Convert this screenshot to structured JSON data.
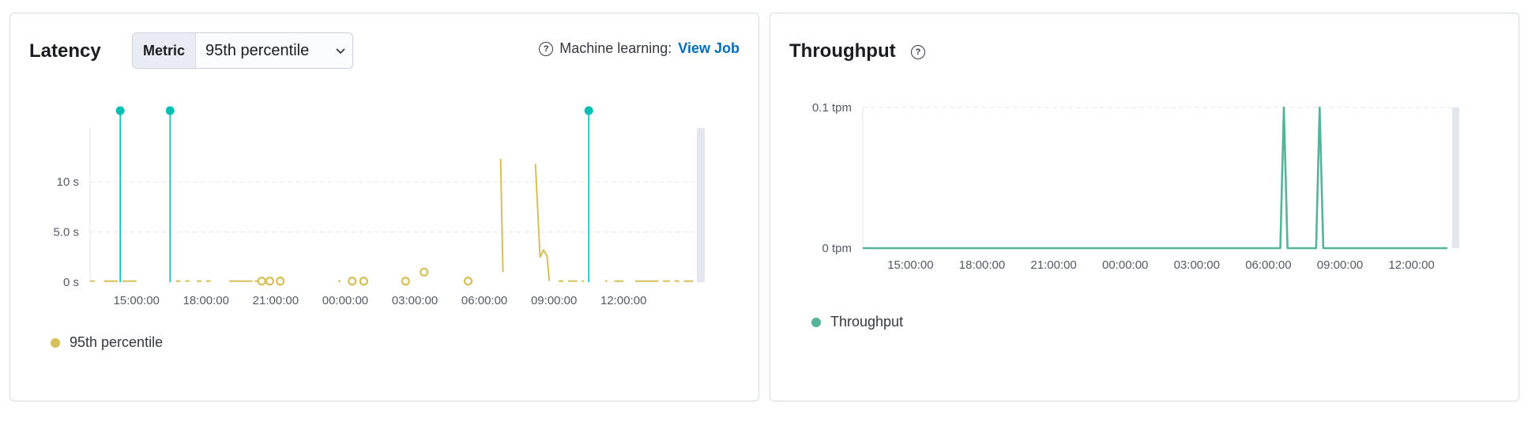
{
  "latency_panel": {
    "title": "Latency",
    "metric_select": {
      "prepend": "Metric",
      "value": "95th percentile"
    },
    "ml": {
      "label": "Machine learning:",
      "link": "View Job"
    },
    "legend": [
      {
        "name": "95th percentile",
        "color": "#d6bf57"
      }
    ]
  },
  "throughput_panel": {
    "title": "Throughput",
    "legend": [
      {
        "name": "Throughput",
        "color": "#54b399"
      }
    ]
  },
  "chart_data": [
    {
      "type": "line",
      "x_start": "13:00",
      "x_end": "15:30",
      "x_tick_labels": [
        "15:00:00",
        "18:00:00",
        "21:00:00",
        "00:00:00",
        "03:00:00",
        "06:00:00",
        "09:00:00",
        "12:00:00"
      ],
      "y_tick_labels": [
        "0 s",
        "5.0 s",
        "10 s"
      ],
      "ylim": [
        0,
        12.5
      ],
      "grid": true,
      "legend_position": "bottom-left",
      "series": [
        {
          "name": "95th percentile",
          "color": "#d6bf57",
          "line_segments": [
            [
              [
                13.0,
                0.1
              ],
              [
                13.2,
                0.1
              ]
            ],
            [
              [
                13.6,
                0.1
              ],
              [
                14.2,
                0.1
              ]
            ],
            [
              [
                14.4,
                0.1
              ],
              [
                15.0,
                0.1
              ]
            ],
            [
              [
                16.7,
                0.1
              ],
              [
                16.9,
                0.1
              ]
            ],
            [
              [
                17.1,
                0.1
              ],
              [
                17.3,
                0.1
              ]
            ],
            [
              [
                17.6,
                0.1
              ],
              [
                17.8,
                0.1
              ]
            ],
            [
              [
                18.0,
                0.1
              ],
              [
                18.2,
                0.1
              ]
            ],
            [
              [
                19.0,
                0.1
              ],
              [
                20.0,
                0.1
              ]
            ],
            [
              [
                20.1,
                0.1
              ],
              [
                20.3,
                0.1
              ]
            ],
            [
              [
                23.7,
                0.1
              ],
              [
                23.8,
                0.1
              ]
            ],
            [
              [
                24.7,
                0.1
              ],
              [
                24.8,
                0.1
              ]
            ],
            [
              [
                30.7,
                12.3
              ],
              [
                30.8,
                1.0
              ]
            ],
            [
              [
                32.2,
                11.8
              ],
              [
                32.4,
                2.5
              ],
              [
                32.55,
                3.2
              ],
              [
                32.7,
                2.6
              ],
              [
                32.8,
                0.1
              ]
            ],
            [
              [
                33.2,
                0.1
              ],
              [
                33.4,
                0.1
              ]
            ],
            [
              [
                33.6,
                0.1
              ],
              [
                34.0,
                0.1
              ]
            ],
            [
              [
                34.2,
                0.1
              ],
              [
                34.3,
                0.1
              ]
            ],
            [
              [
                35.2,
                0.1
              ],
              [
                35.3,
                0.1
              ]
            ],
            [
              [
                35.6,
                0.1
              ],
              [
                36.0,
                0.1
              ]
            ],
            [
              [
                36.5,
                0.1
              ],
              [
                37.5,
                0.1
              ]
            ],
            [
              [
                37.7,
                0.1
              ],
              [
                38.0,
                0.1
              ]
            ],
            [
              [
                38.2,
                0.1
              ],
              [
                38.4,
                0.1
              ]
            ],
            [
              [
                38.6,
                0.1
              ],
              [
                39.0,
                0.1
              ]
            ]
          ],
          "isolated_points": [
            [
              20.4,
              0.1
            ],
            [
              20.75,
              0.1
            ],
            [
              21.2,
              0.1
            ],
            [
              24.3,
              0.1
            ],
            [
              24.8,
              0.1
            ],
            [
              26.6,
              0.1
            ],
            [
              27.4,
              1.0
            ],
            [
              29.3,
              0.1
            ]
          ]
        }
      ],
      "annotations": [
        {
          "x": 14.3,
          "color": "#00bfb3"
        },
        {
          "x": 16.45,
          "color": "#00bfb3"
        },
        {
          "x": 34.5,
          "color": "#00bfb3"
        }
      ],
      "shaded_end_band": true
    },
    {
      "type": "line",
      "x_start": "13:00",
      "x_end": "15:30",
      "x_tick_labels": [
        "15:00:00",
        "18:00:00",
        "21:00:00",
        "00:00:00",
        "03:00:00",
        "06:00:00",
        "09:00:00",
        "12:00:00"
      ],
      "y_tick_labels": [
        "0 tpm",
        "0.1 tpm"
      ],
      "ylim": [
        0,
        0.1
      ],
      "grid": true,
      "legend_position": "bottom-left",
      "series": [
        {
          "name": "Throughput",
          "color": "#54b399",
          "points": [
            [
              13.0,
              0
            ],
            [
              30.5,
              0
            ],
            [
              30.65,
              0.1
            ],
            [
              30.8,
              0
            ],
            [
              32.0,
              0
            ],
            [
              32.15,
              0.1
            ],
            [
              32.3,
              0
            ],
            [
              37.5,
              0
            ]
          ]
        }
      ],
      "shaded_end_band": true
    }
  ]
}
